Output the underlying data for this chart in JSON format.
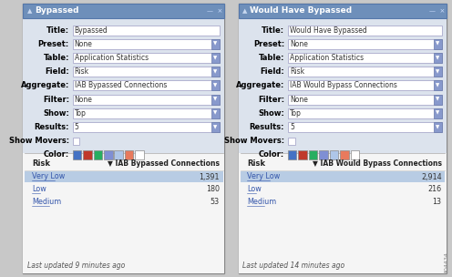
{
  "widget1": {
    "title_bar": "Bypassed",
    "title_val": "Bypassed",
    "preset_val": "None",
    "table_val": "Application Statistics",
    "field_val": "Risk",
    "aggregate_val": "IAB Bypassed Connections",
    "filter_val": "None",
    "show_val": "Top",
    "results_val": "5",
    "col_header1": "Risk",
    "col_header2": "IAB Bypassed Connections",
    "rows": [
      [
        "Very Low",
        "1,391"
      ],
      [
        "Low",
        "180"
      ],
      [
        "Medium",
        "53"
      ]
    ],
    "footer": "Last updated 9 minutes ago"
  },
  "widget2": {
    "title_bar": "Would Have Bypassed",
    "title_val": "Would Have Bypassed",
    "preset_val": "None",
    "table_val": "Application Statistics",
    "field_val": "Risk",
    "aggregate_val": "IAB Would Bypass Connections",
    "filter_val": "None",
    "show_val": "Top",
    "results_val": "5",
    "col_header1": "Risk",
    "col_header2": "IAB Would Bypass Connections",
    "rows": [
      [
        "Very Low",
        "2,914"
      ],
      [
        "Low",
        "216"
      ],
      [
        "Medium",
        "13"
      ]
    ],
    "footer": "Last updated 14 minutes ago"
  },
  "bg_color": "#e8e8e8",
  "title_bar_bg": "#6e8fba",
  "title_bar_text": "#ffffff",
  "form_bg": "#dce3ed",
  "field_bg": "#ffffff",
  "label_color": "#000000",
  "table_row_highlight": "#b8cce4",
  "link_color": "#3355aa",
  "footer_color": "#555555",
  "color_swatches": [
    "#4472c4",
    "#c0392b",
    "#27ae60",
    "#7f8fd4",
    "#aec6e8",
    "#e87a5d",
    "#ffffff"
  ],
  "watermark": "404434"
}
